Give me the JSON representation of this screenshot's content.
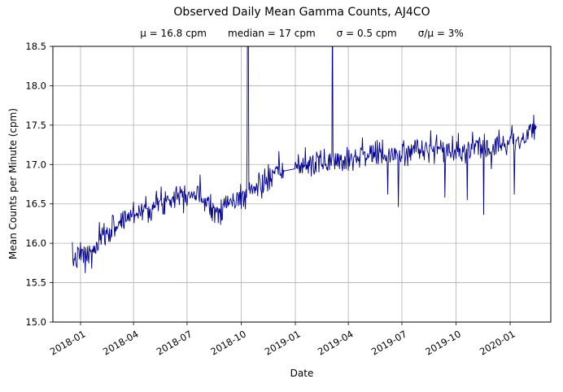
{
  "chart_data": {
    "type": "line",
    "title": "Observed Daily Mean Gamma Counts, AJ4CO",
    "stats": [
      "μ = 16.8 cpm",
      "median = 17 cpm",
      "σ = 0.5 cpm",
      "σ/μ = 3%"
    ],
    "xlabel": "Date",
    "ylabel": "Mean Counts per Minute (cpm)",
    "legend": "none",
    "grid": true,
    "grid_color": "#b0b0b0",
    "axis_color": "#000000",
    "line_color": "#00008b",
    "background": "#ffffff",
    "ylim": [
      15.0,
      18.5
    ],
    "ytick_labels": [
      "15.0",
      "15.5",
      "16.0",
      "16.5",
      "17.0",
      "17.5",
      "18.0",
      "18.5"
    ],
    "xtick_labels": [
      "2018-01",
      "2018-04",
      "2018-07",
      "2018-10",
      "2019-01",
      "2019-04",
      "2019-07",
      "2019-10",
      "2020-01"
    ],
    "xlim": [
      "2017-11-15",
      "2020-03-10"
    ],
    "data_start": "2017-12-18",
    "data_end": "2020-02-15",
    "noise_std": 0.085,
    "seed": 7,
    "trend_anchors": [
      [
        "2017-12-18",
        15.78
      ],
      [
        "2018-01-01",
        15.85
      ],
      [
        "2018-01-20",
        15.85
      ],
      [
        "2018-02-05",
        16.05
      ],
      [
        "2018-02-25",
        16.2
      ],
      [
        "2018-03-15",
        16.3
      ],
      [
        "2018-04-05",
        16.4
      ],
      [
        "2018-04-25",
        16.45
      ],
      [
        "2018-05-15",
        16.5
      ],
      [
        "2018-06-05",
        16.6
      ],
      [
        "2018-06-25",
        16.65
      ],
      [
        "2018-07-15",
        16.62
      ],
      [
        "2018-08-05",
        16.55
      ],
      [
        "2018-08-20",
        16.42
      ],
      [
        "2018-09-05",
        16.5
      ],
      [
        "2018-09-25",
        16.55
      ],
      [
        "2018-10-10",
        16.62
      ],
      [
        "2018-10-25",
        16.7
      ],
      [
        "2018-11-15",
        16.8
      ],
      [
        "2018-12-05",
        16.9
      ],
      [
        "2018-12-31",
        17.0
      ],
      [
        "2019-02-01",
        17.0
      ],
      [
        "2019-03-01",
        17.05
      ],
      [
        "2019-04-01",
        17.08
      ],
      [
        "2019-05-01",
        17.15
      ],
      [
        "2019-06-01",
        17.1
      ],
      [
        "2019-07-01",
        17.15
      ],
      [
        "2019-08-01",
        17.2
      ],
      [
        "2019-09-01",
        17.2
      ],
      [
        "2019-10-01",
        17.15
      ],
      [
        "2019-11-01",
        17.2
      ],
      [
        "2019-12-01",
        17.25
      ],
      [
        "2020-01-01",
        17.3
      ],
      [
        "2020-02-01",
        17.35
      ],
      [
        "2020-02-15",
        17.5
      ]
    ],
    "spike_points": [
      [
        "2018-10-11",
        17.2
      ],
      [
        "2018-10-12",
        19.6
      ],
      [
        "2018-10-13",
        18.9
      ],
      [
        "2019-03-05",
        19.2
      ]
    ],
    "dip_points": [
      [
        "2018-01-09",
        15.62
      ],
      [
        "2018-08-17",
        16.26
      ],
      [
        "2018-08-30",
        16.3
      ],
      [
        "2019-06-07",
        16.62
      ],
      [
        "2019-06-25",
        16.46
      ],
      [
        "2019-09-12",
        16.58
      ],
      [
        "2019-10-20",
        16.55
      ],
      [
        "2019-11-17",
        16.36
      ],
      [
        "2020-01-08",
        16.62
      ]
    ],
    "gaps": [
      [
        "2018-12-14",
        "2018-12-30"
      ]
    ]
  }
}
